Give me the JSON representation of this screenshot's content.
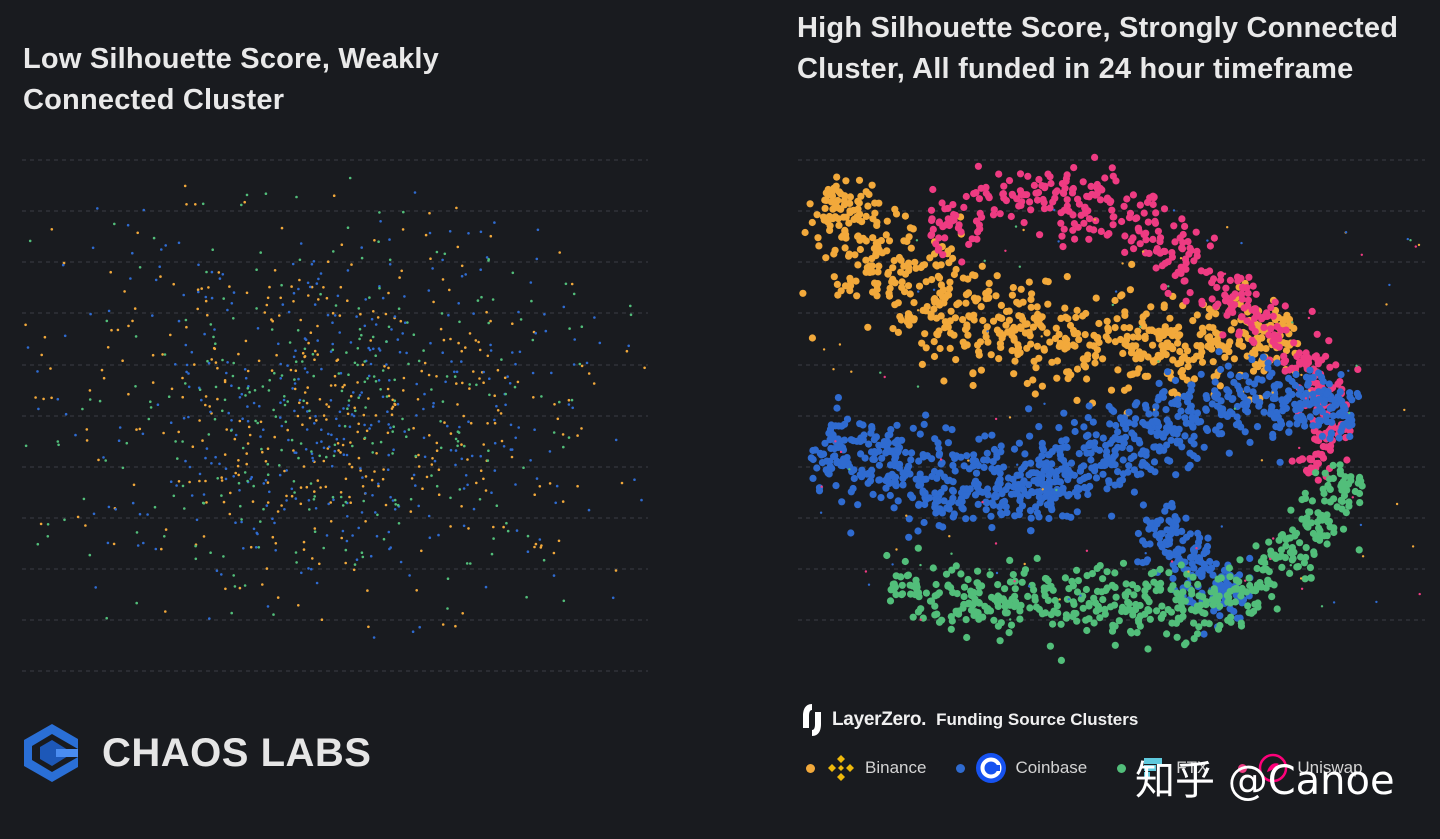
{
  "colors": {
    "background": "#191b1f",
    "binance": "#f2a93b",
    "coinbase": "#2f6bd0",
    "ftx": "#52be7a",
    "uniswap": "#ee3b82",
    "gridline": "#3a3d44"
  },
  "left_panel": {
    "title": "Low Silhouette Score, Weakly Connected Cluster"
  },
  "right_panel": {
    "title": "High Silhouette Score, Strongly Connected Cluster, All funded in 24 hour timeframe"
  },
  "branding": {
    "chaos_labs": "CHAOS LABS",
    "chaos_labs_icon": "chaos-labs-logo-icon",
    "layerzero": "LayerZero.",
    "layerzero_icon": "layerzero-logo-icon",
    "subtitle": "Funding Source Clusters"
  },
  "legend": [
    {
      "label": "Binance",
      "color": "#f2a93b",
      "icon": "binance-icon"
    },
    {
      "label": "Coinbase",
      "color": "#2f6bd0",
      "icon": "coinbase-icon"
    },
    {
      "label": "FTX",
      "color": "#52be7a",
      "icon": "ftx-icon"
    },
    {
      "label": "Uniswap",
      "color": "#ee3b82",
      "icon": "uniswap-icon"
    }
  ],
  "watermark": "知乎 @Canoe",
  "chart_data": [
    {
      "type": "scatter",
      "title": "Low Silhouette Score, Weakly Connected Cluster",
      "xlabel": "",
      "ylabel": "",
      "grid": "horizontal dashed",
      "axes_visible": false,
      "approx_point_count": 1400,
      "series": [
        {
          "name": "Binance",
          "distribution": "diffuse ellipse",
          "center": [
            0.5,
            0.5
          ],
          "spread": [
            0.23,
            0.2
          ],
          "count": 400
        },
        {
          "name": "Coinbase",
          "distribution": "diffuse ellipse",
          "center": [
            0.5,
            0.5
          ],
          "spread": [
            0.23,
            0.2
          ],
          "count": 420
        },
        {
          "name": "FTX",
          "distribution": "diffuse ellipse",
          "center": [
            0.5,
            0.5
          ],
          "spread": [
            0.23,
            0.2
          ],
          "count": 300
        }
      ]
    },
    {
      "type": "scatter",
      "title": "High Silhouette Score, Strongly Connected Cluster, All funded in 24 hour timeframe",
      "xlabel": "",
      "ylabel": "",
      "grid": "horizontal dashed",
      "axes_visible": false,
      "approx_point_count": 3000,
      "series": [
        {
          "name": "Binance",
          "shape": "upper arc band (top-left plume to right)",
          "count": 700
        },
        {
          "name": "Uniswap",
          "shape": "top arc band curving down right side",
          "count": 450
        },
        {
          "name": "Coinbase",
          "shape": "middle horizontal band curving up right",
          "count": 900
        },
        {
          "name": "FTX",
          "shape": "bottom band curving up right side",
          "count": 500
        }
      ]
    }
  ]
}
